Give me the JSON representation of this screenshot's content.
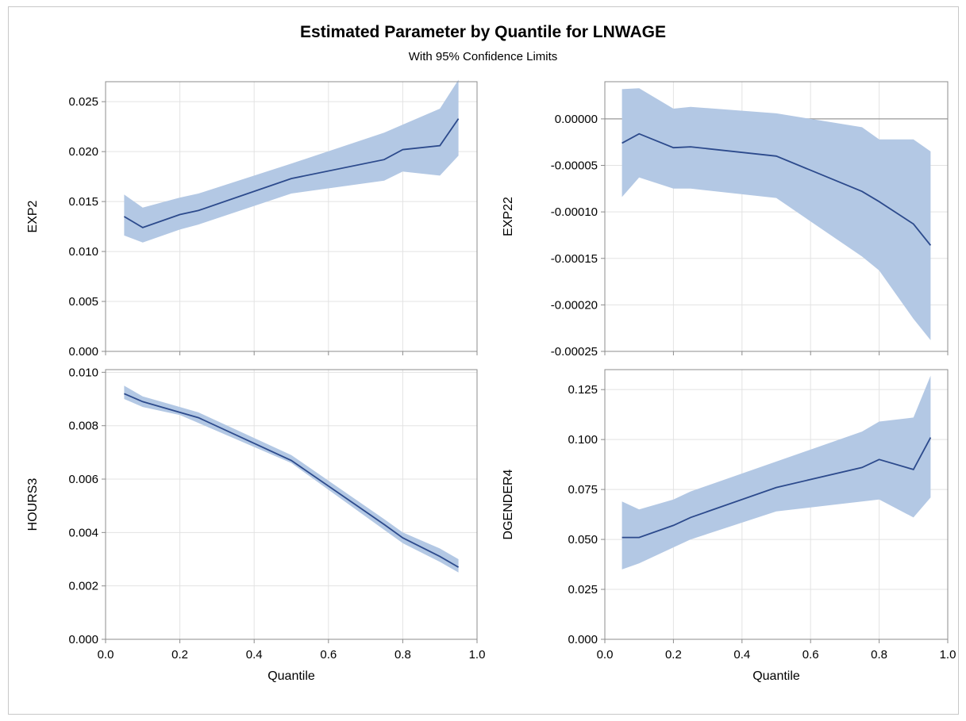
{
  "title": "Estimated Parameter by Quantile for LNWAGE",
  "subtitle": "With 95% Confidence Limits",
  "colors": {
    "band": "#b3c8e4",
    "line": "#2c4a8c",
    "grid": "#e3e3e3",
    "frame": "#8c8c8c",
    "reference": "#999999"
  },
  "chart_data": [
    {
      "type": "line",
      "title": "",
      "xlabel": "",
      "ylabel": "EXP2",
      "xlim": [
        0.0,
        1.0
      ],
      "ylim": [
        0.0,
        0.027
      ],
      "xticks": [
        "0.0",
        "0.2",
        "0.4",
        "0.6",
        "0.8",
        "1.0"
      ],
      "yticks": [
        "0.000",
        "0.005",
        "0.010",
        "0.015",
        "0.020",
        "0.025"
      ],
      "grid": true,
      "x": [
        0.05,
        0.1,
        0.2,
        0.25,
        0.5,
        0.75,
        0.8,
        0.9,
        0.95
      ],
      "series": [
        {
          "values": [
            0.0135,
            0.0124,
            0.0137,
            0.0141,
            0.0173,
            0.0192,
            0.0202,
            0.0206,
            0.0233
          ]
        }
      ],
      "band_lower": [
        0.0116,
        0.0109,
        0.0122,
        0.0127,
        0.0158,
        0.0171,
        0.018,
        0.0176,
        0.0196
      ],
      "band_upper": [
        0.0157,
        0.0144,
        0.0154,
        0.0158,
        0.0188,
        0.0219,
        0.0227,
        0.0243,
        0.0272
      ]
    },
    {
      "type": "line",
      "title": "",
      "xlabel": "",
      "ylabel": "EXP22",
      "xlim": [
        0.0,
        1.0
      ],
      "ylim": [
        -0.00025,
        4e-05
      ],
      "xticks": [
        "0.0",
        "0.2",
        "0.4",
        "0.6",
        "0.8",
        "1.0"
      ],
      "yticks": [
        "-0.00025",
        "-0.00020",
        "-0.00015",
        "-0.00010",
        "-0.00005",
        "0.00000"
      ],
      "grid": true,
      "reference_line": 0,
      "x": [
        0.05,
        0.1,
        0.2,
        0.25,
        0.5,
        0.75,
        0.8,
        0.9,
        0.95
      ],
      "series": [
        {
          "values": [
            -2.6e-05,
            -1.6e-05,
            -3.1e-05,
            -3e-05,
            -4e-05,
            -7.8e-05,
            -8.9e-05,
            -0.000113,
            -0.000136
          ]
        }
      ],
      "band_lower": [
        -8.4e-05,
        -6.3e-05,
        -7.5e-05,
        -7.5e-05,
        -8.5e-05,
        -0.000148,
        -0.000163,
        -0.000215,
        -0.000238
      ],
      "band_upper": [
        3.2e-05,
        3.3e-05,
        1.1e-05,
        1.3e-05,
        6e-06,
        -9e-06,
        -2.2e-05,
        -2.2e-05,
        -3.5e-05
      ]
    },
    {
      "type": "line",
      "title": "",
      "xlabel": "Quantile",
      "ylabel": "HOURS3",
      "xlim": [
        0.0,
        1.0
      ],
      "ylim": [
        0.0,
        0.0101
      ],
      "xticks": [
        "0.0",
        "0.2",
        "0.4",
        "0.6",
        "0.8",
        "1.0"
      ],
      "yticks": [
        "0.000",
        "0.002",
        "0.004",
        "0.006",
        "0.008",
        "0.010"
      ],
      "grid": true,
      "x": [
        0.05,
        0.1,
        0.2,
        0.25,
        0.5,
        0.75,
        0.8,
        0.9,
        0.95
      ],
      "series": [
        {
          "values": [
            0.0092,
            0.0089,
            0.0085,
            0.0083,
            0.0067,
            0.0043,
            0.0038,
            0.0031,
            0.0027
          ]
        }
      ],
      "band_lower": [
        0.009,
        0.0087,
        0.0084,
        0.0081,
        0.0066,
        0.0041,
        0.0036,
        0.0029,
        0.0025
      ],
      "band_upper": [
        0.0095,
        0.0091,
        0.0087,
        0.0085,
        0.0069,
        0.0045,
        0.004,
        0.0034,
        0.003
      ]
    },
    {
      "type": "line",
      "title": "",
      "xlabel": "Quantile",
      "ylabel": "DGENDER4",
      "xlim": [
        0.0,
        1.0
      ],
      "ylim": [
        0.0,
        0.135
      ],
      "xticks": [
        "0.0",
        "0.2",
        "0.4",
        "0.6",
        "0.8",
        "1.0"
      ],
      "yticks": [
        "0.000",
        "0.025",
        "0.050",
        "0.075",
        "0.100",
        "0.125"
      ],
      "grid": true,
      "x": [
        0.05,
        0.1,
        0.2,
        0.25,
        0.5,
        0.75,
        0.8,
        0.9,
        0.95
      ],
      "series": [
        {
          "values": [
            0.051,
            0.051,
            0.057,
            0.061,
            0.076,
            0.086,
            0.09,
            0.085,
            0.101
          ]
        }
      ],
      "band_lower": [
        0.035,
        0.038,
        0.046,
        0.05,
        0.064,
        0.069,
        0.07,
        0.061,
        0.071
      ],
      "band_upper": [
        0.069,
        0.065,
        0.07,
        0.074,
        0.089,
        0.104,
        0.109,
        0.111,
        0.132
      ]
    }
  ]
}
